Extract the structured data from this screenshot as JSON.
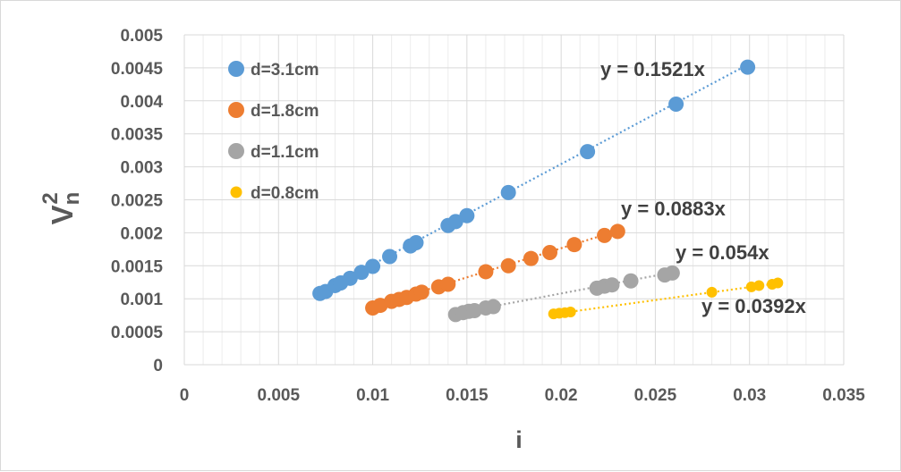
{
  "chart_data": {
    "type": "scatter",
    "title": "",
    "xlabel": "i",
    "ylabel": {
      "base": "V",
      "subscript": "n",
      "superscript": "2"
    },
    "xlim": [
      0,
      0.035
    ],
    "ylim": [
      0,
      0.005
    ],
    "x_ticks": [
      "0",
      "0.005",
      "0.01",
      "0.015",
      "0.02",
      "0.025",
      "0.03",
      "0.035"
    ],
    "y_ticks": [
      "0",
      "0.0005",
      "0.001",
      "0.0015",
      "0.002",
      "0.0025",
      "0.003",
      "0.0035",
      "0.004",
      "0.0045",
      "0.005"
    ],
    "grid": true,
    "legend": "top-left",
    "series": [
      {
        "name": "d=3.1cm",
        "color": "#5b9bd5",
        "trendline": {
          "slope": 0.1521,
          "label": "y = 0.1521x"
        },
        "points": [
          [
            0.0072,
            0.00108
          ],
          [
            0.0075,
            0.00111
          ],
          [
            0.008,
            0.0012
          ],
          [
            0.0083,
            0.00124
          ],
          [
            0.0088,
            0.00131
          ],
          [
            0.0094,
            0.0014
          ],
          [
            0.01,
            0.00149
          ],
          [
            0.0109,
            0.00164
          ],
          [
            0.012,
            0.0018
          ],
          [
            0.0123,
            0.00185
          ],
          [
            0.014,
            0.00211
          ],
          [
            0.0144,
            0.00217
          ],
          [
            0.015,
            0.00226
          ],
          [
            0.0172,
            0.00261
          ],
          [
            0.0214,
            0.00323
          ],
          [
            0.0261,
            0.00395
          ],
          [
            0.0299,
            0.00451
          ]
        ]
      },
      {
        "name": "d=1.8cm",
        "color": "#ed7d31",
        "trendline": {
          "slope": 0.0883,
          "label": "y = 0.0883x"
        },
        "points": [
          [
            0.01,
            0.00086
          ],
          [
            0.0104,
            0.0009
          ],
          [
            0.011,
            0.00096
          ],
          [
            0.0114,
            0.00099
          ],
          [
            0.0118,
            0.00102
          ],
          [
            0.0123,
            0.00107
          ],
          [
            0.0126,
            0.0011
          ],
          [
            0.0135,
            0.00118
          ],
          [
            0.014,
            0.00122
          ],
          [
            0.016,
            0.00141
          ],
          [
            0.0172,
            0.0015
          ],
          [
            0.0184,
            0.00161
          ],
          [
            0.0194,
            0.0017
          ],
          [
            0.0207,
            0.00182
          ],
          [
            0.0223,
            0.00196
          ],
          [
            0.023,
            0.00202
          ]
        ]
      },
      {
        "name": "d=1.1cm",
        "color": "#a5a5a5",
        "trendline": {
          "slope": 0.054,
          "label": "y = 0.054x"
        },
        "points": [
          [
            0.0144,
            0.00076
          ],
          [
            0.0148,
            0.00079
          ],
          [
            0.0151,
            0.00081
          ],
          [
            0.0154,
            0.00082
          ],
          [
            0.016,
            0.00086
          ],
          [
            0.0164,
            0.00088
          ],
          [
            0.0219,
            0.00116
          ],
          [
            0.0223,
            0.00119
          ],
          [
            0.0227,
            0.00121
          ],
          [
            0.0237,
            0.00127
          ],
          [
            0.0255,
            0.00136
          ],
          [
            0.0259,
            0.00139
          ]
        ]
      },
      {
        "name": "d=0.8cm",
        "color": "#ffc000",
        "trendline": {
          "slope": 0.0392,
          "label": "y = 0.0392x"
        },
        "points": [
          [
            0.0196,
            0.00077
          ],
          [
            0.0199,
            0.00078
          ],
          [
            0.0202,
            0.00079
          ],
          [
            0.0205,
            0.0008
          ],
          [
            0.028,
            0.0011
          ],
          [
            0.0301,
            0.00118
          ],
          [
            0.0305,
            0.0012
          ],
          [
            0.0312,
            0.00122
          ],
          [
            0.0315,
            0.00124
          ]
        ]
      }
    ]
  }
}
